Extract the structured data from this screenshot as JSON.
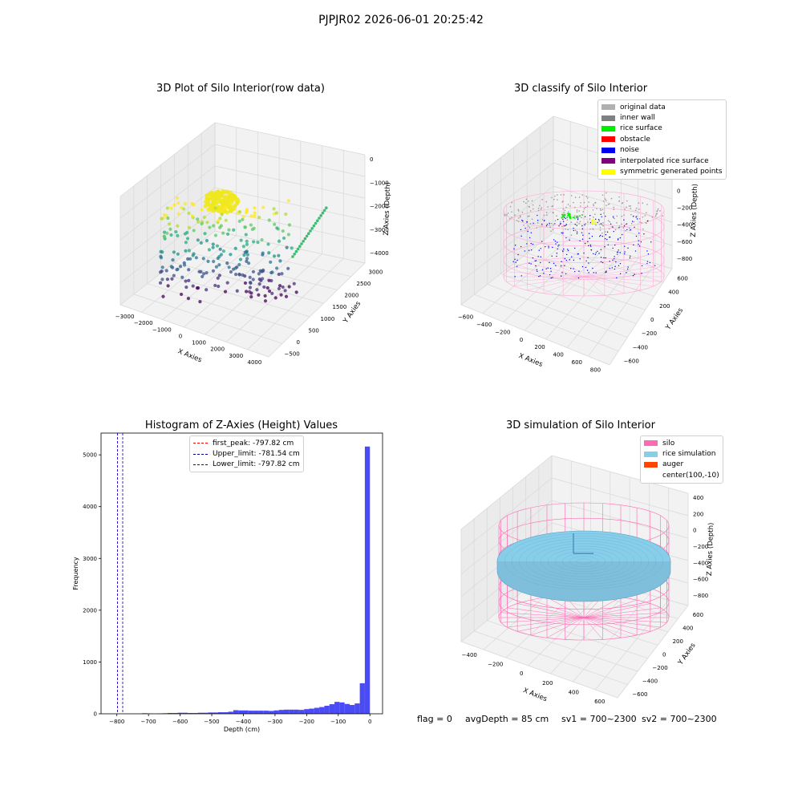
{
  "suptitle": "PJPJR02 2026-06-01 20:25:42",
  "panels": {
    "raw": {
      "title": "3D Plot of Silo Interior(row data)",
      "xlabel": "X Axies",
      "ylabel": "Y Axies",
      "zlabel": "Z Axies (Depth)",
      "xticks": [
        "−3000",
        "−2000",
        "−1000",
        "0",
        "1000",
        "2000",
        "3000",
        "4000"
      ],
      "yticks": [
        "−500",
        "0",
        "500",
        "1000",
        "1500",
        "2000",
        "2500",
        "3000"
      ],
      "zticks": [
        "0",
        "−1000",
        "−2000",
        "−3000",
        "−4000"
      ]
    },
    "classify": {
      "title": "3D classify of Silo Interior",
      "xlabel": "X Axies",
      "ylabel": "Y Axies",
      "zlabel": "Z Axies (Depth)",
      "xticks": [
        "−600",
        "−400",
        "−200",
        "0",
        "200",
        "400",
        "600",
        "800"
      ],
      "yticks": [
        "−600",
        "−400",
        "−200",
        "0",
        "200",
        "400",
        "600"
      ],
      "zticks": [
        "400",
        "200",
        "0",
        "−200",
        "−400",
        "−600",
        "−800"
      ],
      "legend": [
        {
          "label": "original data",
          "color": "#b0b0b0"
        },
        {
          "label": "inner wall",
          "color": "#808080"
        },
        {
          "label": "rice surface",
          "color": "#00ee00"
        },
        {
          "label": "obstacle",
          "color": "#ff0000"
        },
        {
          "label": "noise",
          "color": "#0000ee"
        },
        {
          "label": "interpolated rice surface",
          "color": "#800080"
        },
        {
          "label": "symmetric generated points",
          "color": "#ffff00"
        }
      ]
    },
    "histogram": {
      "title": "Histogram of Z-Axies (Height) Values",
      "xlabel": "Depth (cm)",
      "ylabel": "Frequency",
      "legend": [
        {
          "label": "first_peak: -797.82 cm",
          "color": "#ff0000"
        },
        {
          "label": "Upper_limit: -781.54 cm",
          "color": "#00008b"
        },
        {
          "label": "Lower_limit: -797.82 cm",
          "color": "#0000ff"
        }
      ]
    },
    "simulation": {
      "title": "3D simulation of Silo Interior",
      "xlabel": "X Axies",
      "ylabel": "Y Axies",
      "zlabel": "Z Axies (Depth)",
      "xticks": [
        "−400",
        "−200",
        "0",
        "200",
        "400",
        "600"
      ],
      "yticks": [
        "−600",
        "−400",
        "−200",
        "0",
        "200",
        "400",
        "600"
      ],
      "zticks": [
        "400",
        "200",
        "0",
        "−200",
        "−400",
        "−600",
        "−800"
      ],
      "legend": [
        {
          "label": "silo",
          "color": "#ff69b4"
        },
        {
          "label": "rice simulation",
          "color": "#87ceeb"
        },
        {
          "label": "auger",
          "color": "#ff4500"
        },
        {
          "label": "center(100,-10)",
          "color": ""
        }
      ]
    }
  },
  "footer": {
    "flag": "flag = 0",
    "avg_depth": "avgDepth = 85 cm",
    "sv1": "sv1 = 700~2300",
    "sv2": "sv2 = 700~2300"
  },
  "chart_data": {
    "type": "bar",
    "title": "Histogram of Z-Axies (Height) Values",
    "xlabel": "Depth (cm)",
    "ylabel": "Frequency",
    "xlim": [
      -850,
      40
    ],
    "ylim": [
      0,
      5420
    ],
    "xticks": [
      -800,
      -700,
      -600,
      -500,
      -400,
      -300,
      -200,
      -100,
      0
    ],
    "yticks": [
      0,
      1000,
      2000,
      3000,
      4000,
      5000
    ],
    "bin_width": 16,
    "bin_starts": [
      -720,
      -704,
      -688,
      -672,
      -656,
      -640,
      -624,
      -608,
      -592,
      -576,
      -560,
      -544,
      -528,
      -512,
      -496,
      -480,
      -464,
      -448,
      -432,
      -416,
      -400,
      -384,
      -368,
      -352,
      -336,
      -320,
      -304,
      -288,
      -272,
      -256,
      -240,
      -224,
      -208,
      -192,
      -176,
      -160,
      -144,
      -128,
      -112,
      -96,
      -80,
      -64,
      -48,
      -32,
      -16
    ],
    "values": [
      10,
      5,
      0,
      5,
      10,
      15,
      15,
      20,
      20,
      15,
      15,
      20,
      20,
      25,
      25,
      30,
      30,
      40,
      70,
      65,
      65,
      60,
      60,
      60,
      60,
      55,
      65,
      75,
      80,
      80,
      80,
      75,
      90,
      100,
      115,
      130,
      155,
      185,
      230,
      220,
      190,
      170,
      200,
      590,
      5160
    ],
    "vlines": [
      {
        "label": "first_peak: -797.82 cm",
        "x": -797.82,
        "color": "#ff0000"
      },
      {
        "label": "Upper_limit: -781.54 cm",
        "x": -781.54,
        "color": "#00008b"
      },
      {
        "label": "Lower_limit: -797.82 cm",
        "x": -797.82,
        "color": "#0000ff"
      }
    ],
    "bar_color": "#4b4bf5"
  }
}
